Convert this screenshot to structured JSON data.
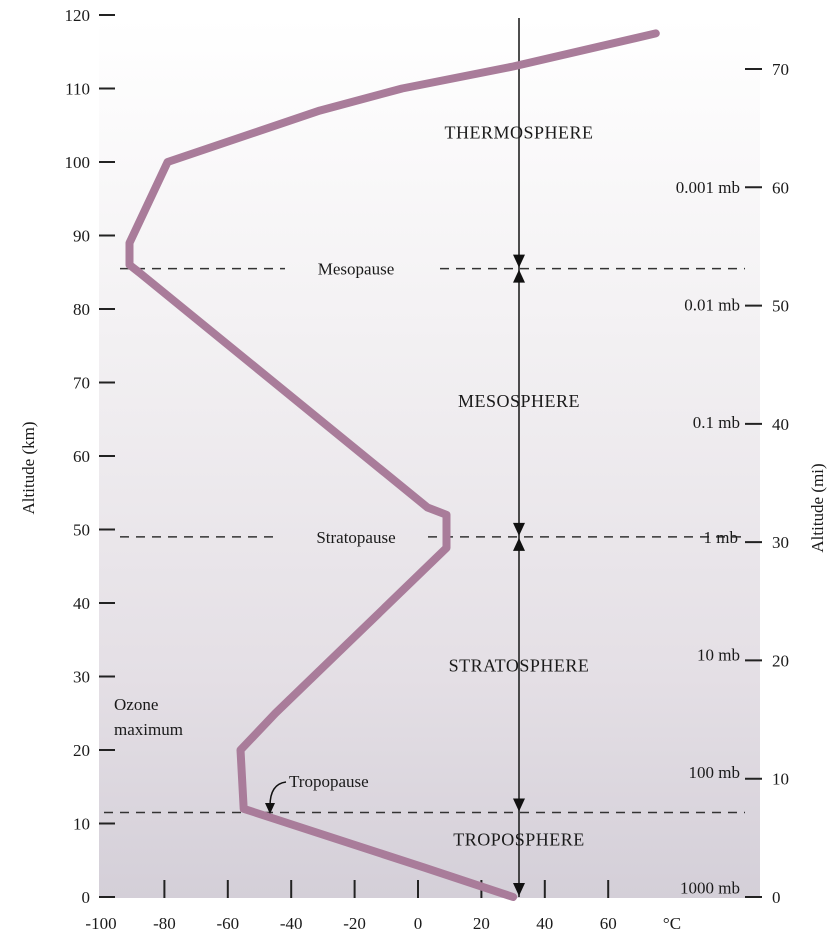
{
  "chart_data": {
    "type": "line",
    "x_unit": "°C",
    "y_left_title": "Altitude (km)",
    "y_right_title": "Altitude (mi)",
    "xlim": [
      -100,
      80
    ],
    "ylim": [
      0,
      120
    ],
    "x_ticks": [
      -100,
      -80,
      -60,
      -40,
      -20,
      0,
      20,
      40,
      60
    ],
    "y_left_ticks": [
      0,
      10,
      20,
      30,
      40,
      50,
      60,
      70,
      80,
      90,
      100,
      110,
      120
    ],
    "y_right_ticks": [
      0,
      10,
      20,
      30,
      40,
      50,
      60,
      70
    ],
    "series": [
      {
        "color": "#a97c9a",
        "points": [
          {
            "x": 30,
            "y": 0
          },
          {
            "x": 2,
            "y": 4
          },
          {
            "x": -55,
            "y": 12
          },
          {
            "x": -56,
            "y": 20
          },
          {
            "x": -45,
            "y": 25
          },
          {
            "x": 9,
            "y": 47.5
          },
          {
            "x": 9,
            "y": 52
          },
          {
            "x": 3,
            "y": 53
          },
          {
            "x": -88,
            "y": 85
          },
          {
            "x": -91,
            "y": 86
          },
          {
            "x": -91,
            "y": 89
          },
          {
            "x": -79,
            "y": 100
          },
          {
            "x": -31,
            "y": 107
          },
          {
            "x": -5,
            "y": 110
          },
          {
            "x": 30,
            "y": 113
          },
          {
            "x": 75,
            "y": 117.5
          }
        ]
      }
    ],
    "boundaries": [
      {
        "label": "Mesopause",
        "altitude": 85.5,
        "pressure": ""
      },
      {
        "label": "Stratopause",
        "altitude": 49,
        "pressure": "1 mb"
      },
      {
        "label": "Tropopause",
        "altitude": 11.5,
        "pressure": ""
      }
    ],
    "layers": [
      {
        "label": "THERMOSPHERE",
        "altitude": 104
      },
      {
        "label": "MESOSPHERE",
        "altitude": 67.5
      },
      {
        "label": "STRATOSPHERE",
        "altitude": 31.5
      },
      {
        "label": "TROPOSPHERE",
        "altitude": 7.8
      }
    ],
    "pressure_labels": [
      {
        "label": "0.001 mb",
        "altitude": 96.6
      },
      {
        "label": "0.01 mb",
        "altitude": 80.6
      },
      {
        "label": "0.1 mb",
        "altitude": 64.6
      },
      {
        "label": "10 mb",
        "altitude": 33
      },
      {
        "label": "100 mb",
        "altitude": 17
      },
      {
        "label": "1000 mb",
        "altitude": 1.3
      }
    ],
    "annotations": {
      "ozone_line1": "Ozone",
      "ozone_line2": "maximum",
      "tropopause_arrow_label": "Tropopause"
    }
  }
}
